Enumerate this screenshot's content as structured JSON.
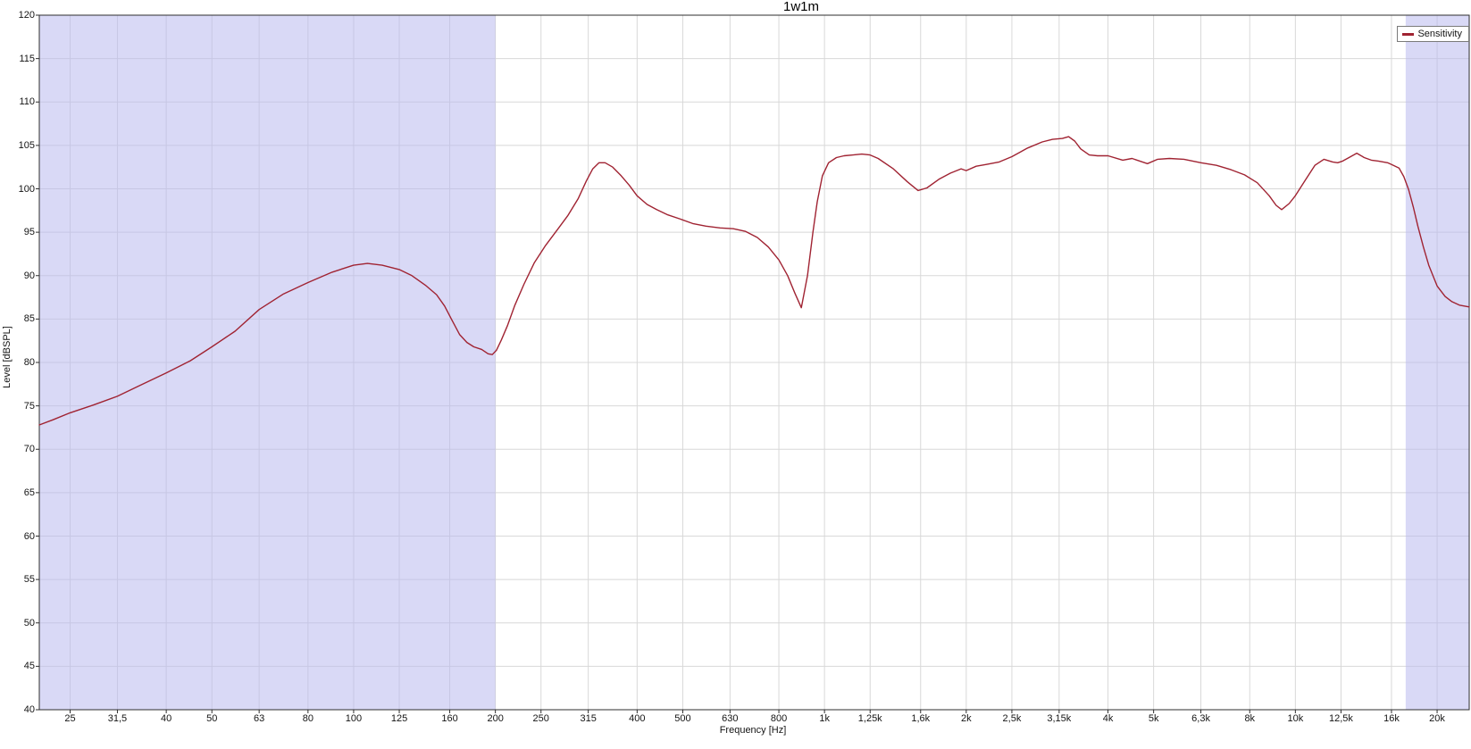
{
  "chart_data": {
    "type": "line",
    "title": "1w1m",
    "xlabel": "Frequency [Hz]",
    "ylabel": "Level [dBSPL]",
    "xscale": "log",
    "xlim": [
      21.5,
      23400
    ],
    "ylim": [
      40,
      120
    ],
    "grid": true,
    "legend_position": "top-right",
    "yticks": [
      40,
      45,
      50,
      55,
      60,
      65,
      70,
      75,
      80,
      85,
      90,
      95,
      100,
      105,
      110,
      115,
      120
    ],
    "xticks": [
      {
        "f": 25,
        "label": "25"
      },
      {
        "f": 31.5,
        "label": "31,5"
      },
      {
        "f": 40,
        "label": "40"
      },
      {
        "f": 50,
        "label": "50"
      },
      {
        "f": 63,
        "label": "63"
      },
      {
        "f": 80,
        "label": "80"
      },
      {
        "f": 100,
        "label": "100"
      },
      {
        "f": 125,
        "label": "125"
      },
      {
        "f": 160,
        "label": "160"
      },
      {
        "f": 200,
        "label": "200"
      },
      {
        "f": 250,
        "label": "250"
      },
      {
        "f": 315,
        "label": "315"
      },
      {
        "f": 400,
        "label": "400"
      },
      {
        "f": 500,
        "label": "500"
      },
      {
        "f": 630,
        "label": "630"
      },
      {
        "f": 800,
        "label": "800"
      },
      {
        "f": 1000,
        "label": "1k"
      },
      {
        "f": 1250,
        "label": "1,25k"
      },
      {
        "f": 1600,
        "label": "1,6k"
      },
      {
        "f": 2000,
        "label": "2k"
      },
      {
        "f": 2500,
        "label": "2,5k"
      },
      {
        "f": 3150,
        "label": "3,15k"
      },
      {
        "f": 4000,
        "label": "4k"
      },
      {
        "f": 5000,
        "label": "5k"
      },
      {
        "f": 6300,
        "label": "6,3k"
      },
      {
        "f": 8000,
        "label": "8k"
      },
      {
        "f": 10000,
        "label": "10k"
      },
      {
        "f": 12500,
        "label": "12,5k"
      },
      {
        "f": 16000,
        "label": "16k"
      },
      {
        "f": 20000,
        "label": "20k"
      }
    ],
    "shaded_bands": [
      {
        "from": 21.5,
        "to": 200
      },
      {
        "from": 17150,
        "to": 23400
      }
    ],
    "colors": {
      "series": "#a02332",
      "band": "#b9b9ee",
      "grid": "#d8d8d8",
      "frame": "#2e2e2e",
      "background": "#ffffff",
      "text": "#141414"
    },
    "series": [
      {
        "name": "Sensitivity",
        "color": "#a02332",
        "points": [
          [
            21.5,
            72.8
          ],
          [
            23,
            73.4
          ],
          [
            25,
            74.2
          ],
          [
            28,
            75.1
          ],
          [
            31.5,
            76.1
          ],
          [
            35,
            77.3
          ],
          [
            40,
            78.8
          ],
          [
            45,
            80.2
          ],
          [
            50,
            81.8
          ],
          [
            56,
            83.6
          ],
          [
            63,
            86.1
          ],
          [
            71,
            87.9
          ],
          [
            80,
            89.2
          ],
          [
            90,
            90.4
          ],
          [
            100,
            91.2
          ],
          [
            107,
            91.4
          ],
          [
            115,
            91.2
          ],
          [
            125,
            90.7
          ],
          [
            133,
            90.0
          ],
          [
            142,
            88.9
          ],
          [
            150,
            87.8
          ],
          [
            156,
            86.5
          ],
          [
            162,
            84.8
          ],
          [
            168,
            83.2
          ],
          [
            174,
            82.3
          ],
          [
            180,
            81.8
          ],
          [
            187,
            81.5
          ],
          [
            193,
            81.0
          ],
          [
            197,
            80.9
          ],
          [
            201,
            81.4
          ],
          [
            206,
            82.6
          ],
          [
            212,
            84.2
          ],
          [
            220,
            86.6
          ],
          [
            230,
            89.0
          ],
          [
            242,
            91.5
          ],
          [
            255,
            93.4
          ],
          [
            270,
            95.2
          ],
          [
            285,
            96.9
          ],
          [
            300,
            98.9
          ],
          [
            312,
            100.9
          ],
          [
            322,
            102.3
          ],
          [
            332,
            103.0
          ],
          [
            342,
            103.0
          ],
          [
            355,
            102.5
          ],
          [
            370,
            101.5
          ],
          [
            385,
            100.4
          ],
          [
            400,
            99.2
          ],
          [
            420,
            98.2
          ],
          [
            440,
            97.6
          ],
          [
            465,
            97.0
          ],
          [
            495,
            96.5
          ],
          [
            525,
            96.0
          ],
          [
            560,
            95.7
          ],
          [
            600,
            95.5
          ],
          [
            640,
            95.4
          ],
          [
            680,
            95.1
          ],
          [
            720,
            94.4
          ],
          [
            760,
            93.3
          ],
          [
            800,
            91.8
          ],
          [
            835,
            90.0
          ],
          [
            865,
            88.0
          ],
          [
            893,
            86.3
          ],
          [
            920,
            90.0
          ],
          [
            945,
            95.0
          ],
          [
            965,
            98.5
          ],
          [
            990,
            101.5
          ],
          [
            1020,
            103.0
          ],
          [
            1060,
            103.6
          ],
          [
            1100,
            103.8
          ],
          [
            1150,
            103.9
          ],
          [
            1200,
            104.0
          ],
          [
            1250,
            103.9
          ],
          [
            1300,
            103.5
          ],
          [
            1400,
            102.3
          ],
          [
            1500,
            100.8
          ],
          [
            1580,
            99.8
          ],
          [
            1650,
            100.1
          ],
          [
            1750,
            101.1
          ],
          [
            1850,
            101.8
          ],
          [
            1950,
            102.3
          ],
          [
            2000,
            102.1
          ],
          [
            2100,
            102.6
          ],
          [
            2200,
            102.8
          ],
          [
            2350,
            103.1
          ],
          [
            2500,
            103.7
          ],
          [
            2700,
            104.7
          ],
          [
            2900,
            105.4
          ],
          [
            3050,
            105.7
          ],
          [
            3200,
            105.8
          ],
          [
            3300,
            106.0
          ],
          [
            3400,
            105.5
          ],
          [
            3500,
            104.6
          ],
          [
            3650,
            103.9
          ],
          [
            3800,
            103.8
          ],
          [
            4000,
            103.8
          ],
          [
            4300,
            103.3
          ],
          [
            4500,
            103.5
          ],
          [
            4850,
            102.9
          ],
          [
            5100,
            103.4
          ],
          [
            5400,
            103.5
          ],
          [
            5800,
            103.4
          ],
          [
            6300,
            103.0
          ],
          [
            6800,
            102.7
          ],
          [
            7300,
            102.2
          ],
          [
            7800,
            101.6
          ],
          [
            8300,
            100.7
          ],
          [
            8800,
            99.2
          ],
          [
            9100,
            98.1
          ],
          [
            9350,
            97.6
          ],
          [
            9700,
            98.3
          ],
          [
            10000,
            99.2
          ],
          [
            10500,
            101.0
          ],
          [
            11000,
            102.7
          ],
          [
            11500,
            103.4
          ],
          [
            12000,
            103.1
          ],
          [
            12300,
            103.0
          ],
          [
            12600,
            103.2
          ],
          [
            13000,
            103.6
          ],
          [
            13500,
            104.1
          ],
          [
            14000,
            103.6
          ],
          [
            14500,
            103.3
          ],
          [
            15000,
            103.2
          ],
          [
            15700,
            103.0
          ],
          [
            16000,
            102.8
          ],
          [
            16600,
            102.4
          ],
          [
            17000,
            101.4
          ],
          [
            17400,
            99.9
          ],
          [
            17800,
            97.9
          ],
          [
            18200,
            95.7
          ],
          [
            18700,
            93.3
          ],
          [
            19200,
            91.2
          ],
          [
            19700,
            89.7
          ],
          [
            20000,
            88.8
          ],
          [
            20800,
            87.6
          ],
          [
            21500,
            87.0
          ],
          [
            22300,
            86.6
          ],
          [
            23400,
            86.4
          ]
        ]
      }
    ]
  }
}
